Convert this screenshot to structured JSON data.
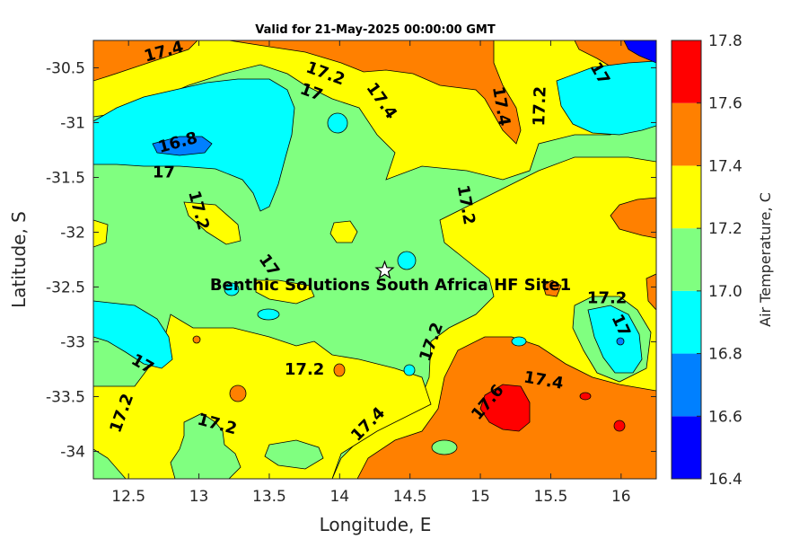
{
  "chart_data": {
    "type": "contourf",
    "title": "Valid for 21-May-2025 00:00:00 GMT",
    "xlabel": "Longitude, E",
    "ylabel": "Latitude, S",
    "xlim": [
      12.25,
      16.25
    ],
    "ylim": [
      -34.25,
      -30.25
    ],
    "x_ticks": [
      12.5,
      13,
      13.5,
      14,
      14.5,
      15,
      15.5,
      16
    ],
    "y_ticks": [
      -30.5,
      -31,
      -31.5,
      -32,
      -32.5,
      -33,
      -33.5,
      -34
    ],
    "colorbar": {
      "label": "Air Temperature, C",
      "levels": [
        16.4,
        16.6,
        16.8,
        17,
        17.2,
        17.4,
        17.6,
        17.8
      ],
      "colors": [
        "#0000ff",
        "#0080ff",
        "#00ffff",
        "#80ff80",
        "#ffff00",
        "#ff8000",
        "#ff0000",
        "#800000"
      ]
    },
    "contour_labels": [
      {
        "text": "17.4",
        "lon": 12.75,
        "lat": -30.35,
        "rot": -15
      },
      {
        "text": "17.2",
        "lon": 13.9,
        "lat": -30.55,
        "rot": 20
      },
      {
        "text": "17",
        "lon": 13.8,
        "lat": -30.72,
        "rot": 20
      },
      {
        "text": "17.4",
        "lon": 14.3,
        "lat": -30.8,
        "rot": 55
      },
      {
        "text": "17.4",
        "lon": 15.15,
        "lat": -30.85,
        "rot": 80
      },
      {
        "text": "17.2",
        "lon": 15.42,
        "lat": -30.85,
        "rot": -88
      },
      {
        "text": "17",
        "lon": 15.85,
        "lat": -30.55,
        "rot": 60
      },
      {
        "text": "16.8",
        "lon": 12.85,
        "lat": -31.18,
        "rot": -15
      },
      {
        "text": "17",
        "lon": 12.75,
        "lat": -31.45,
        "rot": 0
      },
      {
        "text": "17.2",
        "lon": 13.0,
        "lat": -31.8,
        "rot": 75
      },
      {
        "text": "17.2",
        "lon": 14.9,
        "lat": -31.75,
        "rot": 80
      },
      {
        "text": "17",
        "lon": 13.5,
        "lat": -32.3,
        "rot": 55
      },
      {
        "text": "17.2",
        "lon": 15.9,
        "lat": -32.6,
        "rot": 0
      },
      {
        "text": "17",
        "lon": 16.0,
        "lat": -32.85,
        "rot": 65
      },
      {
        "text": "17",
        "lon": 12.6,
        "lat": -33.2,
        "rot": 30
      },
      {
        "text": "17.2",
        "lon": 13.75,
        "lat": -33.25,
        "rot": 0
      },
      {
        "text": "17.2",
        "lon": 14.65,
        "lat": -33.0,
        "rot": -70
      },
      {
        "text": "17.6",
        "lon": 15.05,
        "lat": -33.55,
        "rot": -50
      },
      {
        "text": "17.4",
        "lon": 15.45,
        "lat": -33.35,
        "rot": 10
      },
      {
        "text": "17.2",
        "lon": 12.45,
        "lat": -33.65,
        "rot": -70
      },
      {
        "text": "17.2",
        "lon": 13.13,
        "lat": -33.75,
        "rot": 15
      },
      {
        "text": "17.4",
        "lon": 14.2,
        "lat": -33.75,
        "rot": -45
      }
    ],
    "site": {
      "label": "Benthic Solutions South Africa HF Site1",
      "lon": 14.32,
      "lat": -32.35
    }
  }
}
